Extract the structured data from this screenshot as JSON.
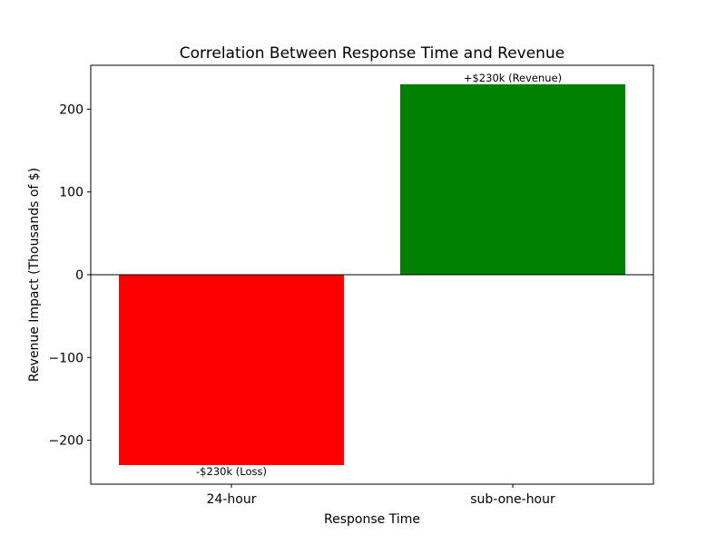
{
  "chart_data": {
    "type": "bar",
    "title": "Correlation Between Response Time and Revenue",
    "xlabel": "Response Time",
    "ylabel": "Revenue Impact (Thousands of $)",
    "categories": [
      "24-hour",
      "sub-one-hour"
    ],
    "values": [
      -230,
      230
    ],
    "bar_colors": [
      "#ff0000",
      "#008000"
    ],
    "data_labels": [
      "-$230k (Loss)",
      "+$230k (Revenue)"
    ],
    "ylim": [
      -253,
      253
    ],
    "yticks": [
      -200,
      -100,
      0,
      100,
      200
    ],
    "ytick_labels": [
      "−200",
      "−100",
      "0",
      "100",
      "200"
    ],
    "grid": false,
    "zero_line": true
  }
}
